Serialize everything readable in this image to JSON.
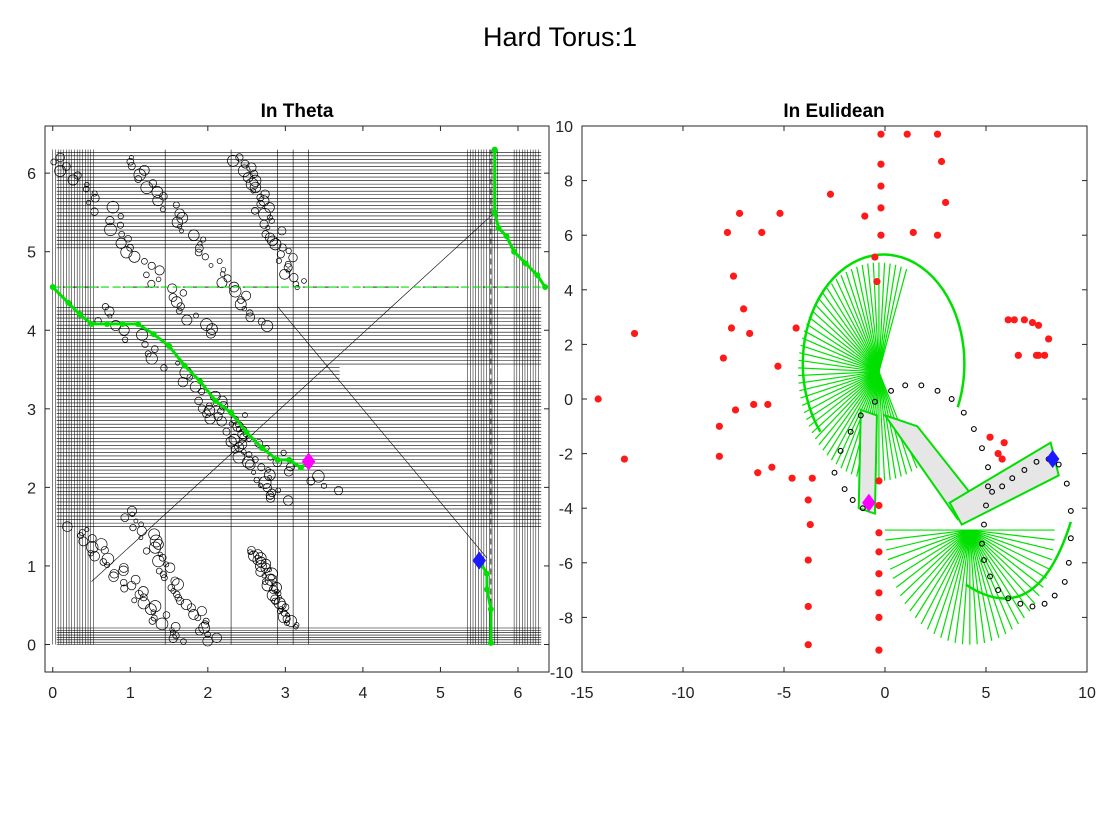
{
  "figure": {
    "title": "Hard Torus:1"
  },
  "colors": {
    "path": "#00e000",
    "start": "#1a1aff",
    "goal": "#ff00ff",
    "obstacle": "#ff1a1a",
    "edge": "#000000",
    "link_fill": "#e6e6e6"
  },
  "chart_data": [
    {
      "type": "line",
      "title": "In Theta",
      "xlabel": "",
      "ylabel": "",
      "xlim": [
        -0.1,
        6.4
      ],
      "ylim": [
        -0.35,
        6.6
      ],
      "xticks": [
        0,
        1,
        2,
        3,
        4,
        5,
        6
      ],
      "yticks": [
        0,
        1,
        2,
        3,
        4,
        5,
        6
      ],
      "grid": false,
      "series": [
        {
          "role": "planned-path-segment-1",
          "x": [
            0.0,
            0.2,
            0.35,
            0.5,
            0.7,
            0.9,
            1.1,
            1.3,
            1.5,
            1.7,
            1.9,
            2.1,
            2.3,
            2.5,
            2.7,
            2.9,
            3.05,
            3.2,
            3.3
          ],
          "y": [
            4.55,
            4.35,
            4.2,
            4.08,
            4.08,
            4.08,
            4.08,
            3.95,
            3.8,
            3.55,
            3.35,
            3.1,
            2.95,
            2.7,
            2.5,
            2.35,
            2.35,
            2.25,
            2.33
          ]
        },
        {
          "role": "planned-path-segment-2",
          "x": [
            5.5,
            5.6,
            5.6,
            5.65,
            5.65
          ],
          "y": [
            1.07,
            0.9,
            0.7,
            0.45,
            0.02
          ]
        },
        {
          "role": "planned-path-segment-3",
          "x": [
            5.7,
            5.7,
            5.75,
            5.85,
            5.95,
            6.1,
            6.25,
            6.35
          ],
          "y": [
            6.3,
            5.5,
            5.3,
            5.2,
            5.0,
            4.85,
            4.7,
            4.55
          ]
        }
      ],
      "markers": {
        "start": {
          "x": 5.5,
          "y": 1.07
        },
        "goal": {
          "x": 3.3,
          "y": 2.33
        }
      }
    },
    {
      "type": "line",
      "title": "In Eulidean",
      "xlabel": "",
      "ylabel": "",
      "xlim": [
        -15,
        10
      ],
      "ylim": [
        -10,
        10
      ],
      "xticks": [
        -15,
        -10,
        -5,
        0,
        5,
        10
      ],
      "yticks": [
        -10,
        -8,
        -6,
        -4,
        -2,
        0,
        2,
        4,
        6,
        8,
        10
      ],
      "grid": false,
      "series": [
        {
          "role": "obstacles",
          "type": "scatter",
          "x": [
            -14.2,
            -12.4,
            -12.9,
            -7.5,
            -7.8,
            -7.2,
            -8.2,
            -6.3,
            -5.6,
            -4.6,
            -3.6,
            -3.7,
            -3.8,
            -3.8,
            -3.8,
            -3.8,
            -0.3,
            -0.3,
            -0.3,
            -0.3,
            -0.3,
            -0.3,
            -0.3,
            -0.3,
            -0.4,
            -0.5,
            -0.2,
            -0.2,
            -0.2,
            -0.2,
            -0.2,
            1.1,
            2.6,
            2.8,
            3.0,
            2.6,
            1.4,
            -1.0,
            -2.7,
            -5.2,
            -6.1,
            -6.7,
            -7.0,
            -7.6,
            -8.0,
            -8.2,
            -7.4,
            -6.5,
            -5.8,
            -5.3,
            -4.4,
            5.2,
            5.6,
            5.8,
            5.9,
            6.1,
            6.4,
            6.9,
            7.3,
            7.6,
            8.1,
            7.6,
            7.9,
            7.5,
            6.6
          ],
          "y": [
            0.0,
            2.4,
            -2.2,
            4.5,
            6.1,
            6.8,
            -2.1,
            -2.7,
            -2.5,
            -2.9,
            -2.9,
            -4.6,
            -5.9,
            -7.6,
            -9.0,
            -3.7,
            -9.2,
            -8.0,
            -7.1,
            -6.4,
            -5.6,
            -4.9,
            -3.9,
            -3.0,
            4.3,
            5.2,
            6.0,
            7.0,
            7.8,
            8.6,
            9.7,
            9.7,
            9.7,
            8.7,
            7.2,
            6.0,
            6.1,
            6.7,
            7.5,
            6.8,
            6.1,
            2.4,
            3.3,
            2.6,
            1.5,
            -1.0,
            -0.4,
            -0.2,
            -0.2,
            1.2,
            2.6,
            -1.4,
            -2.0,
            -2.2,
            -1.6,
            2.9,
            2.9,
            2.9,
            2.8,
            2.7,
            2.2,
            1.6,
            1.6,
            1.6,
            1.6
          ]
        },
        {
          "role": "end-effector-trace",
          "type": "scatter",
          "x": [
            -2.5,
            -2.2,
            -1.7,
            -1.2,
            -0.5,
            0.3,
            1.0,
            1.8,
            2.6,
            3.3,
            3.9,
            4.4,
            4.8,
            5.1,
            5.1,
            5.0,
            4.9,
            4.8,
            4.9,
            5.2,
            5.6,
            6.1,
            6.7,
            7.3,
            7.9,
            8.4,
            8.9,
            9.1,
            9.2,
            9.2,
            9.0,
            8.6,
            8.1,
            7.5,
            6.9,
            6.3,
            5.8,
            5.3,
            -2.0,
            -1.6,
            -1.1
          ],
          "y": [
            -2.7,
            -1.9,
            -1.2,
            -0.6,
            -0.1,
            0.3,
            0.5,
            0.5,
            0.3,
            0.0,
            -0.5,
            -1.1,
            -1.8,
            -2.5,
            -3.2,
            -3.9,
            -4.6,
            -5.3,
            -5.9,
            -6.5,
            -7.0,
            -7.3,
            -7.5,
            -7.6,
            -7.5,
            -7.2,
            -6.7,
            -6.0,
            -5.1,
            -4.1,
            -3.1,
            -2.4,
            -2.2,
            -2.3,
            -2.6,
            -2.9,
            -3.2,
            -3.4,
            -3.3,
            -3.7,
            -4.0
          ]
        }
      ],
      "markers": {
        "start": {
          "x": 8.3,
          "y": -2.2
        },
        "goal": {
          "x": -0.8,
          "y": -3.8
        }
      }
    }
  ]
}
